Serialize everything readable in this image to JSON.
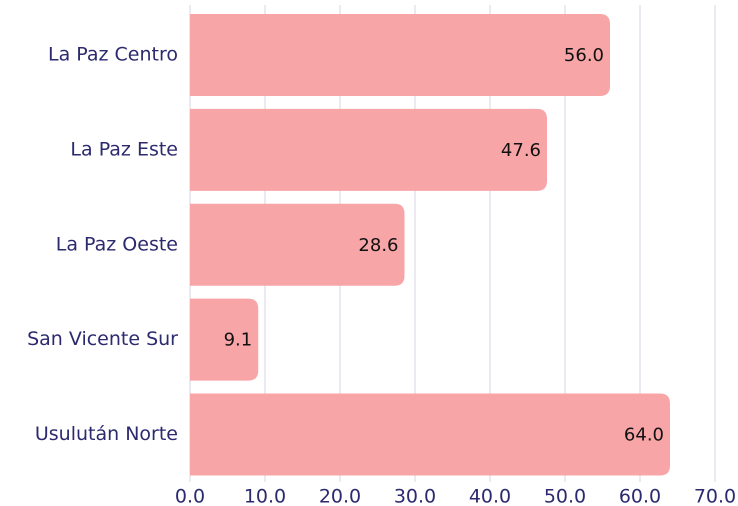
{
  "chart_data": {
    "type": "bar",
    "orientation": "horizontal",
    "categories": [
      "La Paz Centro",
      "La Paz Este",
      "La Paz Oeste",
      "San Vicente Sur",
      "Usulután Norte"
    ],
    "values": [
      56.0,
      47.6,
      28.6,
      9.1,
      64.0
    ],
    "value_labels": [
      "56.0",
      "47.6",
      "28.6",
      "9.1",
      "64.0"
    ],
    "color": "#f8a5a8",
    "xlim": [
      0,
      70
    ],
    "xticks": [
      {
        "value": 0,
        "label": "0.0"
      },
      {
        "value": 10,
        "label": "10.0"
      },
      {
        "value": 20,
        "label": "20.0"
      },
      {
        "value": 30,
        "label": "30.0"
      },
      {
        "value": 40,
        "label": "40.0"
      },
      {
        "value": 50,
        "label": "50.0"
      },
      {
        "value": 60,
        "label": "60.0"
      },
      {
        "value": 70,
        "label": "70.0"
      }
    ],
    "grid": true
  }
}
